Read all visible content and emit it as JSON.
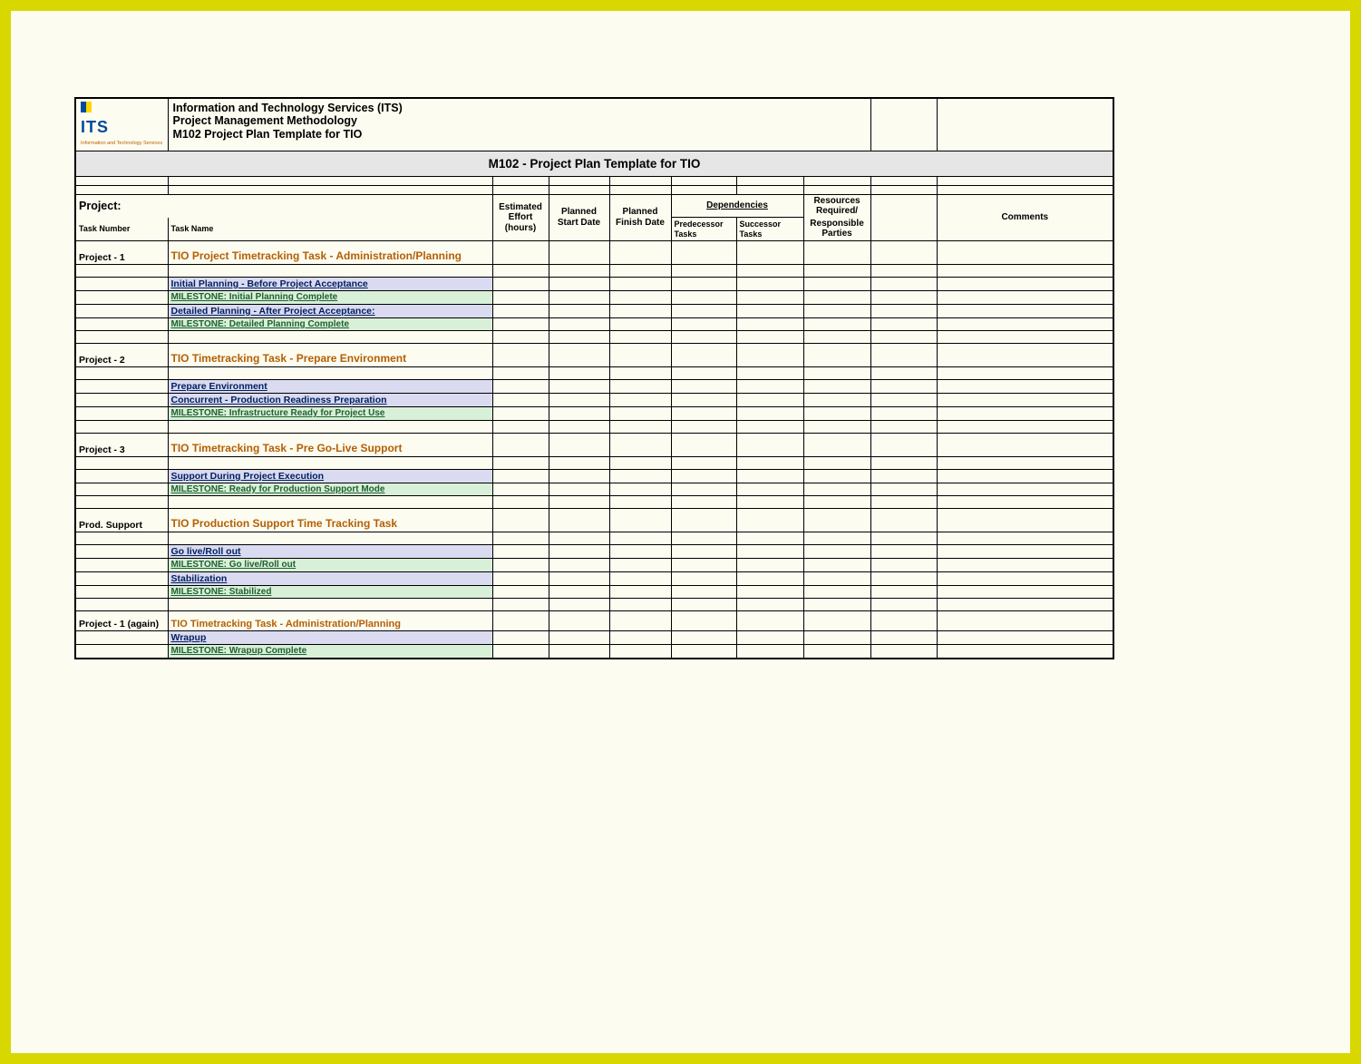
{
  "logo": {
    "text": "ITS",
    "subtext": "Information and Technology Services"
  },
  "header": {
    "line1": "Information and Technology Services (ITS)",
    "line2": "Project Management Methodology",
    "line3": "M102 Project Plan Template for TIO"
  },
  "title_band": "M102 - Project Plan Template for TIO",
  "project_label": "Project:",
  "column_headers": {
    "task_number": "Task Number",
    "task_name": "Task Name",
    "estimated_effort": "Estimated Effort (hours)",
    "planned_start": "Planned Start Date",
    "planned_finish": "Planned Finish Date",
    "dependencies": "Dependencies",
    "predecessor": "Predecessor Tasks",
    "successor": "Successor Tasks",
    "resources_required": "Resources Required/",
    "responsible": "Responsible Parties",
    "comments": "Comments"
  },
  "rows": [
    {
      "type": "section",
      "task_number": "Project - 1",
      "task_name": "TIO Project Timetracking Task - Administration/Planning"
    },
    {
      "type": "blank"
    },
    {
      "type": "activity",
      "task_name": "Initial Planning - Before Project Acceptance"
    },
    {
      "type": "milestone",
      "task_name": "MILESTONE: Initial Planning Complete"
    },
    {
      "type": "activity",
      "task_name": "Detailed Planning - After Project Acceptance:"
    },
    {
      "type": "milestone",
      "task_name": "MILESTONE: Detailed Planning Complete"
    },
    {
      "type": "blank"
    },
    {
      "type": "section",
      "task_number": "Project - 2",
      "task_name": "TIO Timetracking Task - Prepare Environment"
    },
    {
      "type": "blank"
    },
    {
      "type": "activity",
      "task_name": "Prepare Environment"
    },
    {
      "type": "activity",
      "task_name": "Concurrent - Production Readiness Preparation"
    },
    {
      "type": "milestone",
      "task_name": "MILESTONE: Infrastructure Ready for Project Use"
    },
    {
      "type": "blank"
    },
    {
      "type": "section",
      "task_number": "Project - 3",
      "task_name": "TIO Timetracking Task - Pre Go-Live Support"
    },
    {
      "type": "blank"
    },
    {
      "type": "activity",
      "task_name": "Support During Project Execution"
    },
    {
      "type": "milestone",
      "task_name": "MILESTONE: Ready for Production Support Mode"
    },
    {
      "type": "blank"
    },
    {
      "type": "section",
      "task_number": "Prod. Support",
      "task_name": "TIO Production Support Time Tracking Task"
    },
    {
      "type": "blank"
    },
    {
      "type": "activity",
      "task_name": "Go live/Roll out"
    },
    {
      "type": "milestone",
      "task_name": "MILESTONE: Go live/Roll out"
    },
    {
      "type": "activity",
      "task_name": "Stabilization"
    },
    {
      "type": "milestone",
      "task_name": "MILESTONE: Stabilized"
    },
    {
      "type": "blank"
    },
    {
      "type": "section-plain",
      "task_number": "Project - 1 (again)",
      "task_name": "TIO Timetracking Task - Administration/Planning"
    },
    {
      "type": "activity",
      "task_name": "Wrapup"
    },
    {
      "type": "milestone",
      "task_name": "MILESTONE: Wrapup Complete"
    }
  ],
  "colors": {
    "page_border": "#d8d800",
    "page_bg": "#fcfcf0",
    "section_title": "#b45f04",
    "activity_bg": "#dadaf0",
    "activity_fg": "#002060",
    "milestone_bg": "#d8f0d8",
    "milestone_fg": "#1f6030",
    "title_band_bg": "#e6e6e6",
    "logo_blue": "#004b9b",
    "logo_orange": "#c06000"
  }
}
